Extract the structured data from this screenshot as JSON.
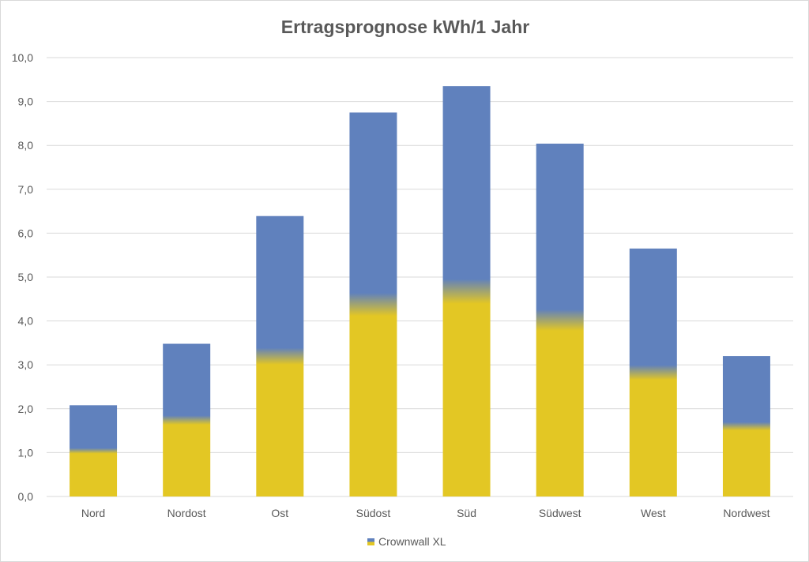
{
  "chart_data": {
    "type": "bar",
    "title": "Ertragsprognose kWh/1 Jahr",
    "categories": [
      "Nord",
      "Nordost",
      "Ost",
      "Südost",
      "Süd",
      "Südwest",
      "West",
      "Nordwest"
    ],
    "series": [
      {
        "name": "Crownwall XL",
        "values": [
          2.08,
          3.48,
          6.39,
          8.75,
          9.35,
          8.04,
          5.65,
          3.2
        ]
      }
    ],
    "ylim": [
      0,
      10
    ],
    "yticks": [
      0,
      1,
      2,
      3,
      4,
      5,
      6,
      7,
      8,
      9,
      10
    ],
    "ytick_labels": [
      "0,0",
      "1,0",
      "2,0",
      "3,0",
      "4,0",
      "5,0",
      "6,0",
      "7,0",
      "8,0",
      "9,0",
      "10,0"
    ],
    "xlabel": "",
    "ylabel": "",
    "grid": true,
    "legend": "bottom",
    "colors": {
      "top": "#6081bd",
      "bottom": "#e3c724",
      "grid": "#d9d9d9",
      "text": "#595959"
    }
  }
}
